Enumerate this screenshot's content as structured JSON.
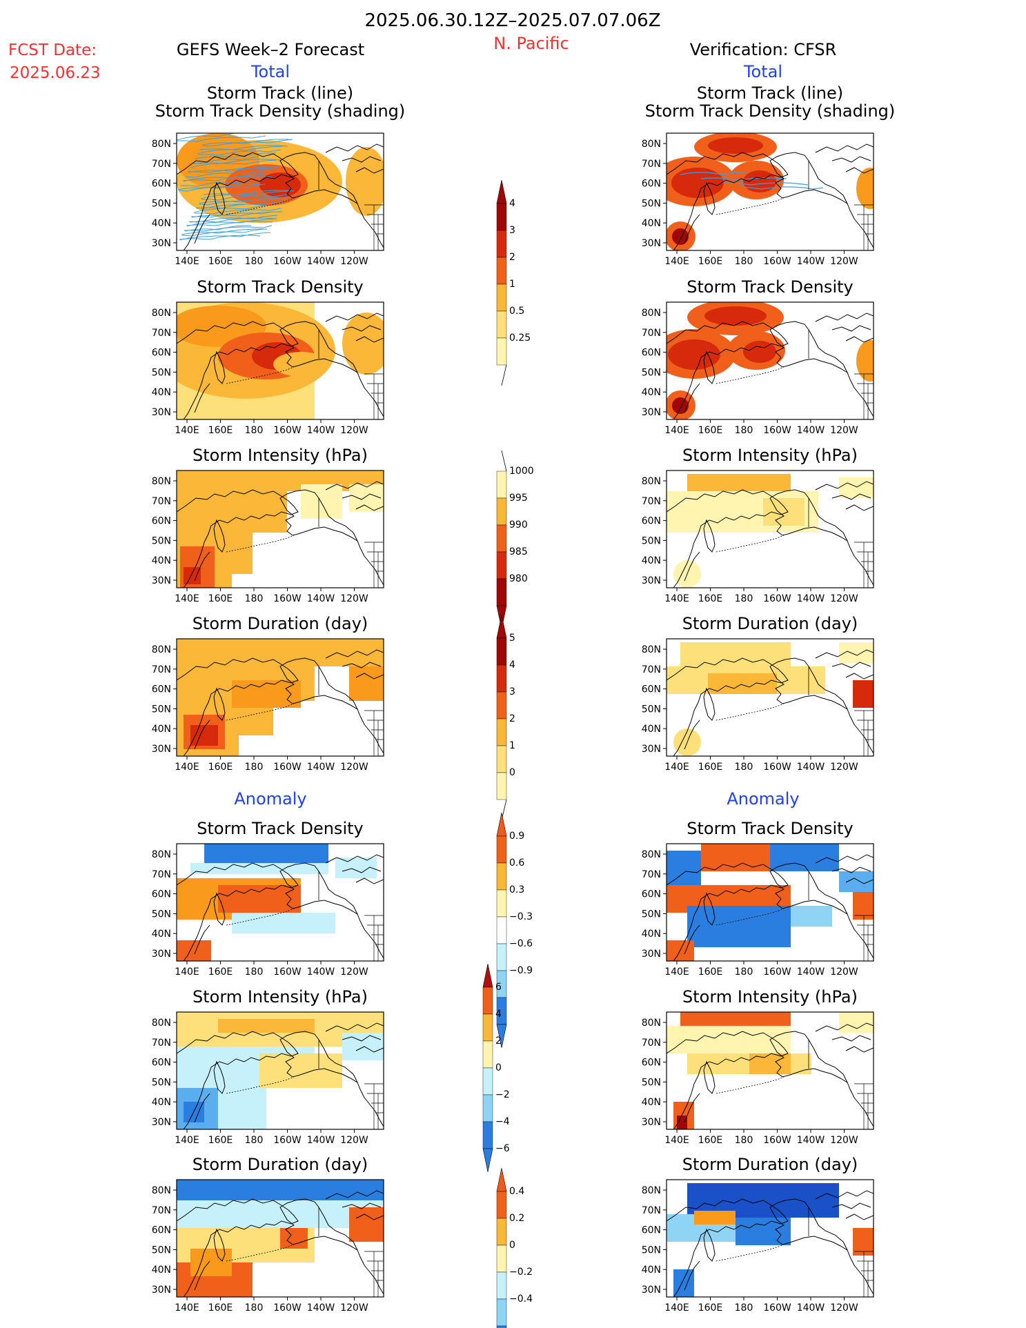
{
  "header": {
    "period": "2025.06.30.12Z–2025.07.07.06Z",
    "region": "N. Pacific",
    "fcst_label": "FCST Date:",
    "fcst_date": "2025.06.23",
    "left_title": "GEFS Week–2 Forecast",
    "right_title": "Verification: CFSR",
    "total_label": "Total",
    "anomaly_label": "Anomaly"
  },
  "panel_titles": {
    "track_line": "Storm Track (line)",
    "track_shading": "Storm Track Density (shading)",
    "track_density": "Storm Track Density",
    "intensity": "Storm Intensity (hPa)",
    "duration": "Storm Duration (day)"
  },
  "axes": {
    "lat_ticks": [
      "80N",
      "70N",
      "60N",
      "50N",
      "40N",
      "30N"
    ],
    "lon_ticks": [
      "140E",
      "160E",
      "180",
      "160W",
      "140W",
      "120W"
    ]
  },
  "colorbars": {
    "density": [
      "4",
      "3",
      "2",
      "1",
      "0.5",
      "0.25"
    ],
    "intensity": [
      "1000",
      "995",
      "990",
      "985",
      "980"
    ],
    "duration": [
      "5",
      "4",
      "3",
      "2",
      "1",
      "0"
    ],
    "density_anom": [
      "0.9",
      "0.6",
      "0.3",
      "−0.3",
      "−0.6",
      "−0.9"
    ],
    "intensity_anom": [
      "6",
      "4",
      "2",
      "0",
      "−2",
      "−4",
      "−6"
    ],
    "duration_anom": [
      "0.4",
      "0.2",
      "0",
      "−0.2",
      "−0.4"
    ]
  },
  "colors": {
    "title_red": "#ff3030",
    "title_blue": "#2040ff",
    "warm": [
      "#fff5b0",
      "#fde07a",
      "#fbb838",
      "#f99a1c",
      "#f0601a",
      "#d72a0c",
      "#a00808"
    ],
    "cool": [
      "#c6f0fa",
      "#8fd4f5",
      "#5aaef0",
      "#2a7ee0",
      "#1a50c8"
    ],
    "track_lines": "#3a9ee0"
  }
}
